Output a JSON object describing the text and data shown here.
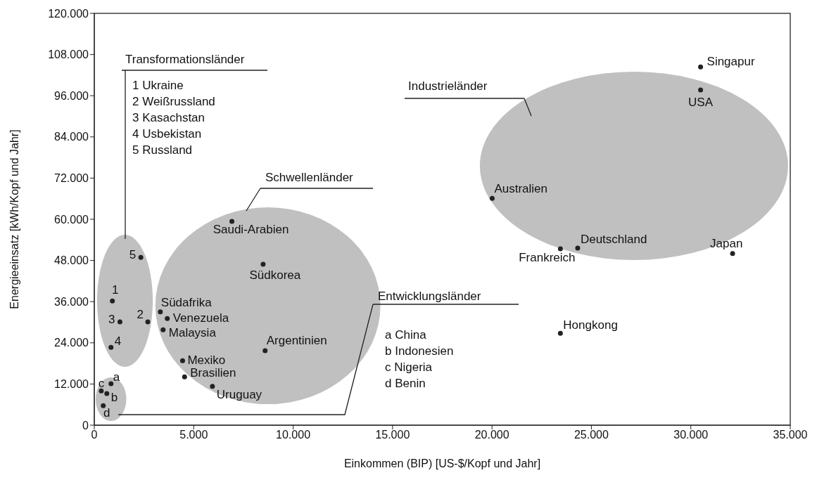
{
  "chart_data": {
    "type": "scatter",
    "xlabel": "Einkommen (BIP) [US-$/Kopf und Jahr]",
    "ylabel": "Energieeinsatz [kWh/Kopf und Jahr]",
    "xlim": [
      0,
      35000
    ],
    "ylim": [
      0,
      120000
    ],
    "xticks": [
      {
        "value": 0,
        "label": "0"
      },
      {
        "value": 5000,
        "label": "5.000"
      },
      {
        "value": 10000,
        "label": "10.000"
      },
      {
        "value": 15000,
        "label": "15.000"
      },
      {
        "value": 20000,
        "label": "20.000"
      },
      {
        "value": 25000,
        "label": "25.000"
      },
      {
        "value": 30000,
        "label": "30.000"
      },
      {
        "value": 35000,
        "label": "35.000"
      }
    ],
    "yticks": [
      {
        "value": 0,
        "label": "0"
      },
      {
        "value": 12000,
        "label": "12.000"
      },
      {
        "value": 24000,
        "label": "24.000"
      },
      {
        "value": 36000,
        "label": "36.000"
      },
      {
        "value": 48000,
        "label": "48.000"
      },
      {
        "value": 60000,
        "label": "60.000"
      },
      {
        "value": 72000,
        "label": "72.000"
      },
      {
        "value": 84000,
        "label": "84.000"
      },
      {
        "value": 96000,
        "label": "96.000"
      },
      {
        "value": 108000,
        "label": "108.000"
      },
      {
        "value": 120000,
        "label": "120.000"
      }
    ],
    "marker": "circle",
    "series": [
      {
        "color": "#222222",
        "x": [
          30490,
          30490,
          20010,
          23440,
          24310,
          32100,
          23440,
          6920,
          8490,
          3320,
          3670,
          3460,
          8590,
          4440,
          4540,
          5940,
          2340,
          910,
          1290,
          2690,
          840,
          840,
          350,
          630,
          450
        ],
        "values": [
          104400,
          97700,
          66100,
          51400,
          51600,
          50000,
          26800,
          59400,
          46900,
          33000,
          31100,
          27800,
          21700,
          18800,
          14100,
          11300,
          48900,
          36200,
          30100,
          30100,
          22700,
          12100,
          10000,
          9200,
          5700
        ]
      }
    ],
    "annotations": [
      {
        "text": "Singapur",
        "x": 30490,
        "y": 104400
      },
      {
        "text": "USA",
        "x": 30490,
        "y": 97700
      },
      {
        "text": "Australien",
        "x": 20010,
        "y": 66100
      },
      {
        "text": "Frankreich",
        "x": 23440,
        "y": 51400
      },
      {
        "text": "Deutschland",
        "x": 24310,
        "y": 51600
      },
      {
        "text": "Japan",
        "x": 32100,
        "y": 50000
      },
      {
        "text": "Hongkong",
        "x": 23440,
        "y": 26800
      },
      {
        "text": "Saudi-Arabien",
        "x": 6920,
        "y": 59400
      },
      {
        "text": "Südkorea",
        "x": 8490,
        "y": 46900
      },
      {
        "text": "Südafrika",
        "x": 3320,
        "y": 33000
      },
      {
        "text": "Venezuela",
        "x": 3670,
        "y": 31100
      },
      {
        "text": "Malaysia",
        "x": 3460,
        "y": 27800
      },
      {
        "text": "Argentinien",
        "x": 8590,
        "y": 21700
      },
      {
        "text": "Mexiko",
        "x": 4440,
        "y": 18800
      },
      {
        "text": "Brasilien",
        "x": 4540,
        "y": 14100
      },
      {
        "text": "Uruguay",
        "x": 5940,
        "y": 11300
      },
      {
        "text": "5",
        "x": 2340,
        "y": 48900
      },
      {
        "text": "1",
        "x": 910,
        "y": 36200
      },
      {
        "text": "3",
        "x": 1290,
        "y": 30100
      },
      {
        "text": "2",
        "x": 2690,
        "y": 30100
      },
      {
        "text": "4",
        "x": 840,
        "y": 22700
      },
      {
        "text": "a",
        "x": 840,
        "y": 12100
      },
      {
        "text": "c",
        "x": 350,
        "y": 10000
      },
      {
        "text": "b",
        "x": 630,
        "y": 9200
      },
      {
        "text": "d",
        "x": 450,
        "y": 5700
      },
      "Transformationsländer",
      "1 Ukraine",
      "2 Weißrussland",
      "3 Kasachstan",
      "4 Usbekistan",
      "5 Russland",
      "Schwellenländer",
      "Industrieländer",
      "Entwicklungsländer",
      "a China",
      "b Indonesien",
      "c Nigeria",
      "d Benin"
    ]
  }
}
